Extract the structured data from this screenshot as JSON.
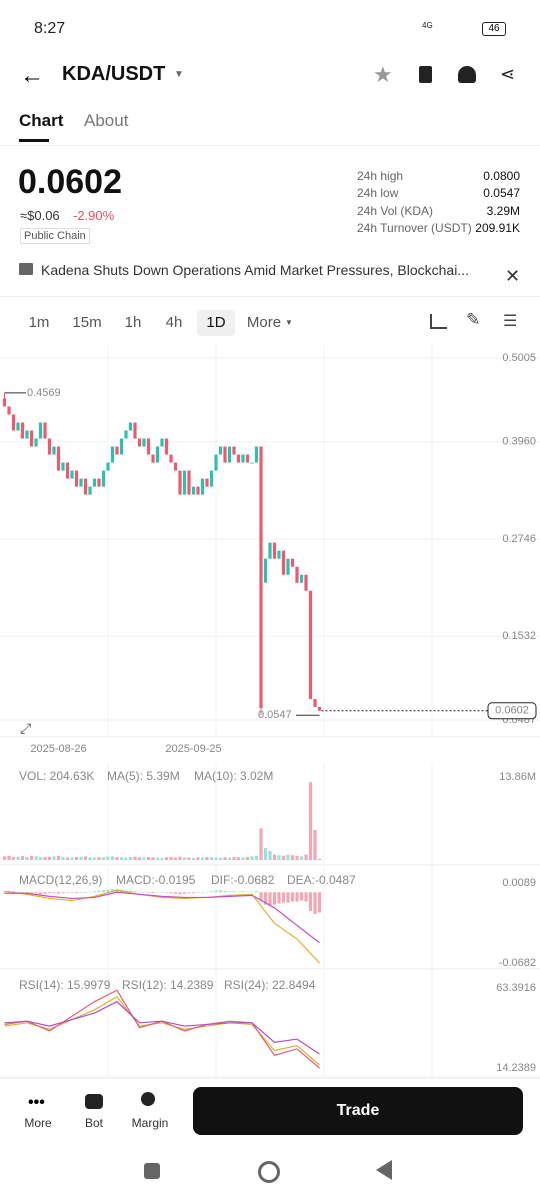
{
  "status_bar": {
    "time": "8:27",
    "network": "4G",
    "battery": "46"
  },
  "header": {
    "pair": "KDA/USDT"
  },
  "tabs": [
    "Chart",
    "About"
  ],
  "price": {
    "last": "0.0602",
    "fiat": "≈$0.06",
    "change": "-2.90%",
    "tag": "Public Chain"
  },
  "stats": [
    {
      "label": "24h high",
      "value": "0.0800"
    },
    {
      "label": "24h low",
      "value": "0.0547"
    },
    {
      "label": "24h Vol (KDA)",
      "value": "3.29M"
    },
    {
      "label": "24h Turnover (USDT)",
      "value": "209.91K"
    }
  ],
  "news": "Kadena Shuts Down Operations Amid Market Pressures, Blockchai...",
  "timeframes": [
    "1m",
    "15m",
    "1h",
    "4h",
    "1D",
    "More"
  ],
  "chart_data": {
    "type": "candlestick",
    "categories": [
      null,
      null,
      null,
      null,
      null,
      null,
      null,
      null,
      null,
      null,
      null,
      null,
      "2025-08-26",
      null,
      null,
      null,
      null,
      null,
      null,
      null,
      null,
      null,
      null,
      null,
      null,
      null,
      null,
      null,
      null,
      null,
      null,
      null,
      null,
      null,
      null,
      null,
      null,
      null,
      null,
      null,
      null,
      null,
      "2025-09-25",
      null,
      null,
      null,
      null,
      null,
      null,
      null,
      null,
      null,
      null,
      null,
      null,
      null,
      null,
      null,
      null,
      null,
      null,
      null,
      null,
      null,
      null,
      null,
      null,
      null,
      null,
      null,
      null
    ],
    "open": [
      0.45,
      0.44,
      0.43,
      0.41,
      0.42,
      0.4,
      0.41,
      0.39,
      0.4,
      0.42,
      0.4,
      0.38,
      0.39,
      0.36,
      0.37,
      0.35,
      0.36,
      0.34,
      0.35,
      0.33,
      0.34,
      0.35,
      0.34,
      0.36,
      0.37,
      0.39,
      0.38,
      0.4,
      0.41,
      0.42,
      0.4,
      0.39,
      0.4,
      0.38,
      0.37,
      0.39,
      0.4,
      0.38,
      0.37,
      0.36,
      0.33,
      0.36,
      0.33,
      0.34,
      0.33,
      0.35,
      0.34,
      0.36,
      0.38,
      0.39,
      0.37,
      0.39,
      0.38,
      0.37,
      0.38,
      0.37,
      0.37,
      0.39,
      0.22,
      0.25,
      0.27,
      0.25,
      0.26,
      0.23,
      0.25,
      0.24,
      0.22,
      0.23,
      0.21,
      0.075,
      0.065
    ],
    "close": [
      0.44,
      0.43,
      0.41,
      0.42,
      0.4,
      0.41,
      0.39,
      0.4,
      0.42,
      0.4,
      0.38,
      0.39,
      0.36,
      0.37,
      0.35,
      0.36,
      0.34,
      0.35,
      0.33,
      0.34,
      0.35,
      0.34,
      0.36,
      0.37,
      0.39,
      0.38,
      0.4,
      0.41,
      0.42,
      0.4,
      0.39,
      0.4,
      0.38,
      0.37,
      0.39,
      0.4,
      0.38,
      0.37,
      0.36,
      0.33,
      0.36,
      0.33,
      0.34,
      0.33,
      0.35,
      0.34,
      0.36,
      0.38,
      0.39,
      0.37,
      0.39,
      0.38,
      0.37,
      0.38,
      0.37,
      0.37,
      0.39,
      0.0637,
      0.25,
      0.27,
      0.25,
      0.26,
      0.23,
      0.25,
      0.24,
      0.22,
      0.23,
      0.21,
      0.075,
      0.065,
      0.0602
    ],
    "up_color": "#2ebfae",
    "down_color": "#e85b70",
    "ylim": [
      0.0487,
      0.5005
    ],
    "yticks": [
      0.5005,
      {
        "value": 0.396,
        "label": "0.3960"
      },
      0.2746,
      0.1532,
      0.0487
    ],
    "high_label": 0.4569,
    "low_label": 0.0547,
    "last_label": 0.0602,
    "volume": {
      "legend": [
        "VOL: 204.63K",
        "MA(5): 5.39M",
        "MA(10): 3.02M"
      ],
      "legend_colors": [
        "#444444",
        "#d9a520",
        "#c44fc4"
      ],
      "values": [
        600000,
        700000,
        500000,
        550000,
        650000,
        500000,
        700000,
        600000,
        450000,
        500000,
        550000,
        600000,
        700000,
        500000,
        450000,
        400000,
        500000,
        550000,
        600000,
        450000,
        400000,
        500000,
        450000,
        550000,
        600000,
        500000,
        450000,
        400000,
        500000,
        550000,
        450000,
        400000,
        500000,
        450000,
        400000,
        350000,
        450000,
        500000,
        400000,
        550000,
        450000,
        400000,
        350000,
        450000,
        400000,
        500000,
        450000,
        400000,
        350000,
        450000,
        400000,
        500000,
        450000,
        400000,
        500000,
        600000,
        700000,
        5300000,
        2000000,
        1500000,
        900000,
        800000,
        700000,
        900000,
        800000,
        700000,
        600000,
        900000,
        13000000,
        5000000,
        204630
      ],
      "ylim": [
        0,
        13860000
      ],
      "yticks": [
        {
          "value": 13860000,
          "label": "13.86M"
        }
      ]
    },
    "macd": {
      "legend": [
        "MACD(12,26,9)",
        "MACD:-0.0195",
        "DIF:-0.0682",
        "DEA:-0.0487"
      ],
      "legend_colors": [
        "#444444",
        "#9b2fae",
        "#e0b030",
        "#c44fc4"
      ],
      "histogram": [
        0.001,
        0.0015,
        0.001,
        0.0005,
        -0.0005,
        -0.001,
        -0.0015,
        -0.001,
        -0.002,
        -0.0015,
        -0.001,
        -0.001,
        -0.0015,
        -0.001,
        -0.0005,
        -0.0005,
        -0.001,
        -0.0005,
        0,
        0.0005,
        0.001,
        0.0015,
        0.002,
        0.0025,
        0.003,
        0.003,
        0.0025,
        0.002,
        0.0015,
        0.001,
        0.0005,
        0,
        -0.0005,
        -0.001,
        -0.0005,
        0,
        -0.0005,
        -0.001,
        -0.0015,
        -0.002,
        -0.0015,
        -0.001,
        -0.001,
        -0.0005,
        0,
        0.0005,
        0.001,
        0.0015,
        0.002,
        0.0015,
        0.001,
        0.001,
        0.0005,
        0.001,
        0.0005,
        0.0005,
        0.001,
        -0.008,
        -0.012,
        -0.013,
        -0.012,
        -0.011,
        -0.01,
        -0.01,
        -0.009,
        -0.009,
        -0.008,
        -0.009,
        -0.018,
        -0.021,
        -0.0195
      ],
      "x": [
        0,
        5,
        10,
        15,
        20,
        25,
        30,
        35,
        40,
        45,
        50,
        55,
        60,
        65,
        70
      ],
      "series": [
        {
          "color": "#e0b030",
          "values": [
            0.001,
            -0.002,
            -0.006,
            -0.008,
            -0.004,
            0.002,
            -0.002,
            -0.005,
            -0.006,
            -0.005,
            -0.003,
            -0.002,
            -0.03,
            -0.045,
            -0.0682
          ]
        },
        {
          "color": "#c44fc4",
          "values": [
            -0.001,
            -0.001,
            -0.004,
            -0.006,
            -0.005,
            0,
            -0.002,
            -0.004,
            -0.005,
            -0.005,
            -0.004,
            -0.003,
            -0.015,
            -0.032,
            -0.0487
          ]
        }
      ],
      "ylim": [
        -0.0682,
        0.0089
      ],
      "yticks": [
        0.0089,
        -0.0682
      ]
    },
    "rsi": {
      "x": [
        0,
        5,
        10,
        15,
        20,
        25,
        30,
        35,
        40,
        45,
        50,
        55,
        60,
        65,
        70
      ],
      "series": [
        {
          "legend": "RSI(14): 15.9979",
          "color": "#e0b030",
          "values": [
            40,
            42,
            38,
            44,
            50,
            58,
            40,
            42,
            38,
            40,
            42,
            41,
            25,
            28,
            15.9979
          ]
        },
        {
          "legend": "RSI(12): 14.2389",
          "color": "#e06080",
          "values": [
            41,
            43,
            37,
            46,
            55,
            62,
            39,
            43,
            37,
            41,
            43,
            42,
            22,
            26,
            14.2389
          ]
        },
        {
          "legend": "RSI(24): 22.8494",
          "color": "#b050c0",
          "values": [
            42,
            43,
            40,
            44,
            48,
            55,
            42,
            43,
            40,
            41,
            42,
            42,
            30,
            32,
            22.8494
          ]
        }
      ],
      "ylim": [
        14.2389,
        63.3916
      ],
      "yticks": [
        63.3916,
        14.2389
      ]
    }
  },
  "bottom_nav": [
    "More",
    "Bot",
    "Margin"
  ],
  "trade_button": "Trade"
}
